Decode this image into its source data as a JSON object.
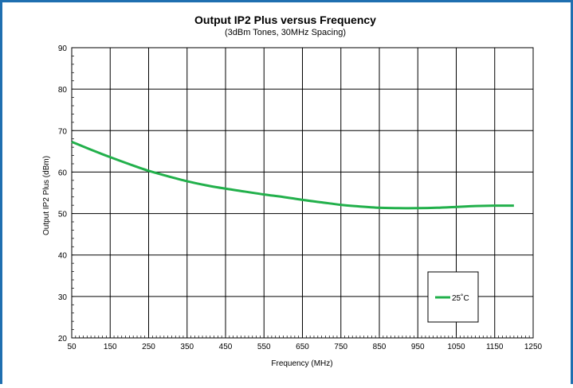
{
  "chart_data": {
    "type": "line",
    "title": "Output IP2 Plus versus Frequency",
    "subtitle": "(3dBm Tones, 30MHz Spacing)",
    "xlabel": "Frequency (MHz)",
    "ylabel": "Output IP2 Plus (dBm)",
    "xlim": [
      50,
      1250
    ],
    "ylim": [
      20,
      90
    ],
    "xticks": [
      50,
      150,
      250,
      350,
      450,
      550,
      650,
      750,
      850,
      950,
      1050,
      1150,
      1250
    ],
    "yticks": [
      20,
      30,
      40,
      50,
      60,
      70,
      80,
      90
    ],
    "grid": true,
    "legend_position": "bottom-right",
    "series": [
      {
        "name": "25˚C",
        "color": "#22b04b",
        "x": [
          50,
          100,
          150,
          200,
          250,
          300,
          350,
          400,
          450,
          500,
          550,
          600,
          650,
          700,
          750,
          800,
          850,
          900,
          950,
          1000,
          1050,
          1100,
          1150,
          1200
        ],
        "y": [
          67.3,
          65.4,
          63.6,
          61.9,
          60.3,
          59.0,
          57.8,
          56.8,
          56.0,
          55.3,
          54.6,
          54.0,
          53.3,
          52.7,
          52.1,
          51.7,
          51.4,
          51.3,
          51.3,
          51.4,
          51.6,
          51.8,
          51.9,
          51.9
        ]
      }
    ]
  }
}
